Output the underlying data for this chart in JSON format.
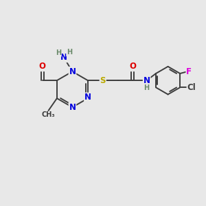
{
  "bg_color": "#e8e8e8",
  "bond_color": "#3d3d3d",
  "bond_lw": 1.4,
  "atom_colors": {
    "N": "#0000dd",
    "O": "#dd0000",
    "S": "#bbaa00",
    "Cl": "#3d3d3d",
    "F": "#dd00dd",
    "H": "#6a8a6a"
  },
  "fs_main": 8.5,
  "fs_small": 7.0,
  "figsize": [
    3.0,
    3.0
  ],
  "dpi": 100,
  "xlim": [
    -1.0,
    11.0
  ],
  "ylim": [
    -1.0,
    9.0
  ]
}
